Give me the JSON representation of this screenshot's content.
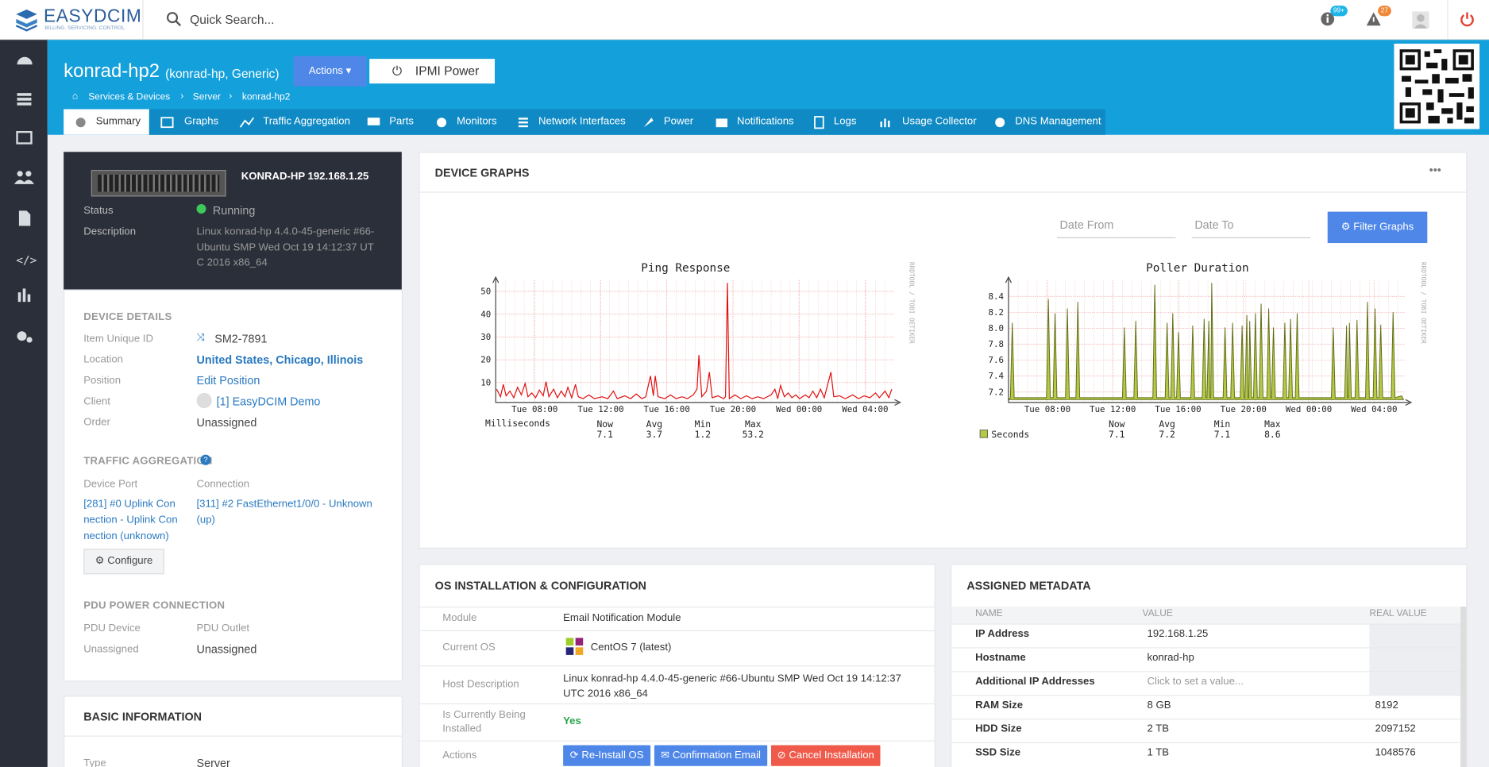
{
  "header": {
    "logo": "EASYDCIM",
    "logo_tagline": "BILLING. SERVICING. CONTROL.",
    "search_placeholder": "Quick Search...",
    "info_badge": "99+",
    "alert_badge": "27"
  },
  "page": {
    "title": "konrad-hp2",
    "subtitle": "(konrad-hp, Generic)",
    "actions_button": "Actions",
    "ipmi_button": "IPMI Power",
    "breadcrumb": [
      "Services & Devices",
      "Server",
      "konrad-hp2"
    ]
  },
  "tabs": [
    "Summary",
    "Graphs",
    "Traffic Aggregation",
    "Parts",
    "Monitors",
    "Network Interfaces",
    "Power",
    "Notifications",
    "Logs",
    "Usage Collector",
    "DNS Management"
  ],
  "device_card": {
    "name": "KONRAD-HP 192.168.1.25",
    "status_label": "Status",
    "status": "Running",
    "description_label": "Description",
    "description": "Linux konrad-hp 4.4.0-45-generic #66-Ubuntu SMP Wed Oct 19 14:12:37 UTC 2016 x86_64"
  },
  "device_details": {
    "heading": "DEVICE DETAILS",
    "rows": [
      {
        "label": "Item Unique ID",
        "value": "SM2-7891"
      },
      {
        "label": "Location",
        "value": "United States, Chicago, Illinois"
      },
      {
        "label": "Position",
        "value": "Edit Position"
      },
      {
        "label": "Client",
        "value": "[1] EasyDCIM Demo"
      },
      {
        "label": "Order",
        "value": "Unassigned"
      }
    ]
  },
  "traffic": {
    "heading": "TRAFFIC AGGREGATION",
    "columns": [
      "Device Port",
      "Connection"
    ],
    "port": "[281] #0 Uplink Connection - Uplink Connection (unknown)",
    "connection": "[311] #2 FastEthernet1/0/0 - Unknown (up)",
    "configure": "Configure"
  },
  "pdu": {
    "heading": "PDU POWER CONNECTION",
    "columns": [
      "PDU Device",
      "PDU Outlet"
    ],
    "values": [
      "Unassigned",
      "Unassigned"
    ]
  },
  "basic": {
    "heading": "BASIC INFORMATION",
    "rows": [
      {
        "label": "Type",
        "value": "Server"
      }
    ]
  },
  "graphs": {
    "heading": "DEVICE GRAPHS",
    "date_from": "Date From",
    "date_to": "Date To",
    "filter": "Filter Graphs",
    "charts": [
      {
        "title": "Ping Response",
        "watermark": "RRDTOOL / TOBI OETIKER",
        "yticks": [
          "10",
          "20",
          "30",
          "40",
          "50"
        ],
        "xticks": [
          "Tue 08:00",
          "Tue 12:00",
          "Tue 16:00",
          "Tue 20:00",
          "Wed 00:00",
          "Wed 04:00"
        ],
        "legend": "Milliseconds",
        "stat_headers": [
          "Now",
          "Avg",
          "Min",
          "Max"
        ],
        "stats": [
          "7.1",
          "3.7",
          "1.2",
          "53.2"
        ]
      },
      {
        "title": "Poller Duration",
        "watermark": "RRDTOOL / TOBI OETIKER",
        "yticks": [
          "7.2",
          "7.4",
          "7.6",
          "7.8",
          "8.0",
          "8.2",
          "8.4"
        ],
        "xticks": [
          "Tue 08:00",
          "Tue 12:00",
          "Tue 16:00",
          "Tue 20:00",
          "Wed 00:00",
          "Wed 04:00"
        ],
        "legend": "Seconds",
        "stat_headers": [
          "Now",
          "Avg",
          "Min",
          "Max"
        ],
        "stats": [
          "7.1",
          "7.2",
          "7.1",
          "8.6"
        ]
      }
    ]
  },
  "os": {
    "heading": "OS INSTALLATION & CONFIGURATION",
    "rows": [
      {
        "label": "Module",
        "value": "Email Notification Module"
      },
      {
        "label": "Current OS",
        "value": "CentOS 7 (latest)"
      },
      {
        "label": "Host Description",
        "value": "Linux konrad-hp 4.4.0-45-generic #66-Ubuntu SMP Wed Oct 19 14:12:37 UTC 2016 x86_64"
      },
      {
        "label": "Is Currently Being Installed",
        "value": "Yes"
      },
      {
        "label": "Actions"
      }
    ],
    "buttons": [
      "Re-Install OS",
      "Confirmation Email",
      "Cancel Installation"
    ]
  },
  "metadata": {
    "heading": "ASSIGNED METADATA",
    "columns": [
      "NAME",
      "VALUE",
      "REAL VALUE"
    ],
    "rows": [
      {
        "name": "IP Address",
        "value": "192.168.1.25"
      },
      {
        "name": "Hostname",
        "value": "konrad-hp"
      },
      {
        "name": "Additional IP Addresses",
        "value": "Click to set a value..."
      },
      {
        "name": "RAM Size",
        "value": "8 GB",
        "real_value": "8192"
      },
      {
        "name": "HDD Size",
        "value": "2 TB",
        "real_value": "2097152"
      },
      {
        "name": "SSD Size",
        "value": "1 TB",
        "real_value": "1048576"
      }
    ]
  }
}
